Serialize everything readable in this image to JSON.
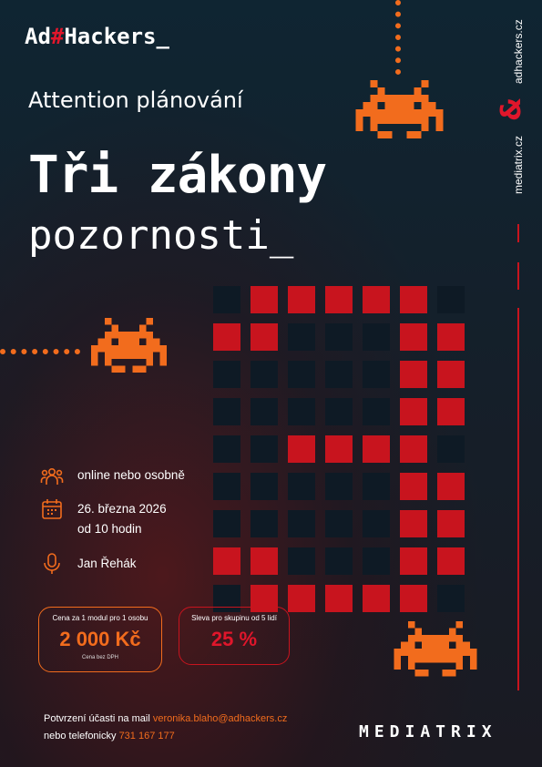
{
  "brand": {
    "logo_part1": "Ad",
    "logo_hash": "#",
    "logo_part2": "Hackers_",
    "domain_top": "adhackers.cz",
    "domain_bottom": "mediatrix.cz",
    "bottom_brand": "MEDIATRIX"
  },
  "header": {
    "subtitle": "Attention plánování",
    "title_line1": "Tři zákony",
    "title_line2": "pozornosti_"
  },
  "details": {
    "format": "online nebo osobně",
    "date": "26. března 2026",
    "time": "od 10 hodin",
    "speaker": "Jan Řehák"
  },
  "pricing": {
    "price_caption": "Cena za  1 modul pro 1 osobu",
    "price_value": "2 000 Kč",
    "price_note": "Cena bez DPH",
    "discount_caption": "Sleva pro skupinu od 5 lidí",
    "discount_value": "25 %"
  },
  "footer": {
    "mail_prefix": "Potvrzení účasti na mail ",
    "mail": "veronika.blaho@adhackers.cz",
    "phone_prefix": "nebo telefonicky ",
    "phone": "731 167 177"
  },
  "colors": {
    "accent_orange": "#f26c1d",
    "accent_red": "#c8141e",
    "background_dark": "#14202b"
  },
  "icons": [
    "people-icon",
    "calendar-icon",
    "microphone-icon",
    "ampersand-logo-icon",
    "space-invader-icon"
  ],
  "pixel_grid": [
    "krrrrrk",
    "rrkkkrr",
    "kkkkkrr",
    "kkkkkrr",
    "kkrrrrk",
    "kkkkkrr",
    "kkkkkrr",
    "rrkkkrr",
    "krrrrrk"
  ]
}
